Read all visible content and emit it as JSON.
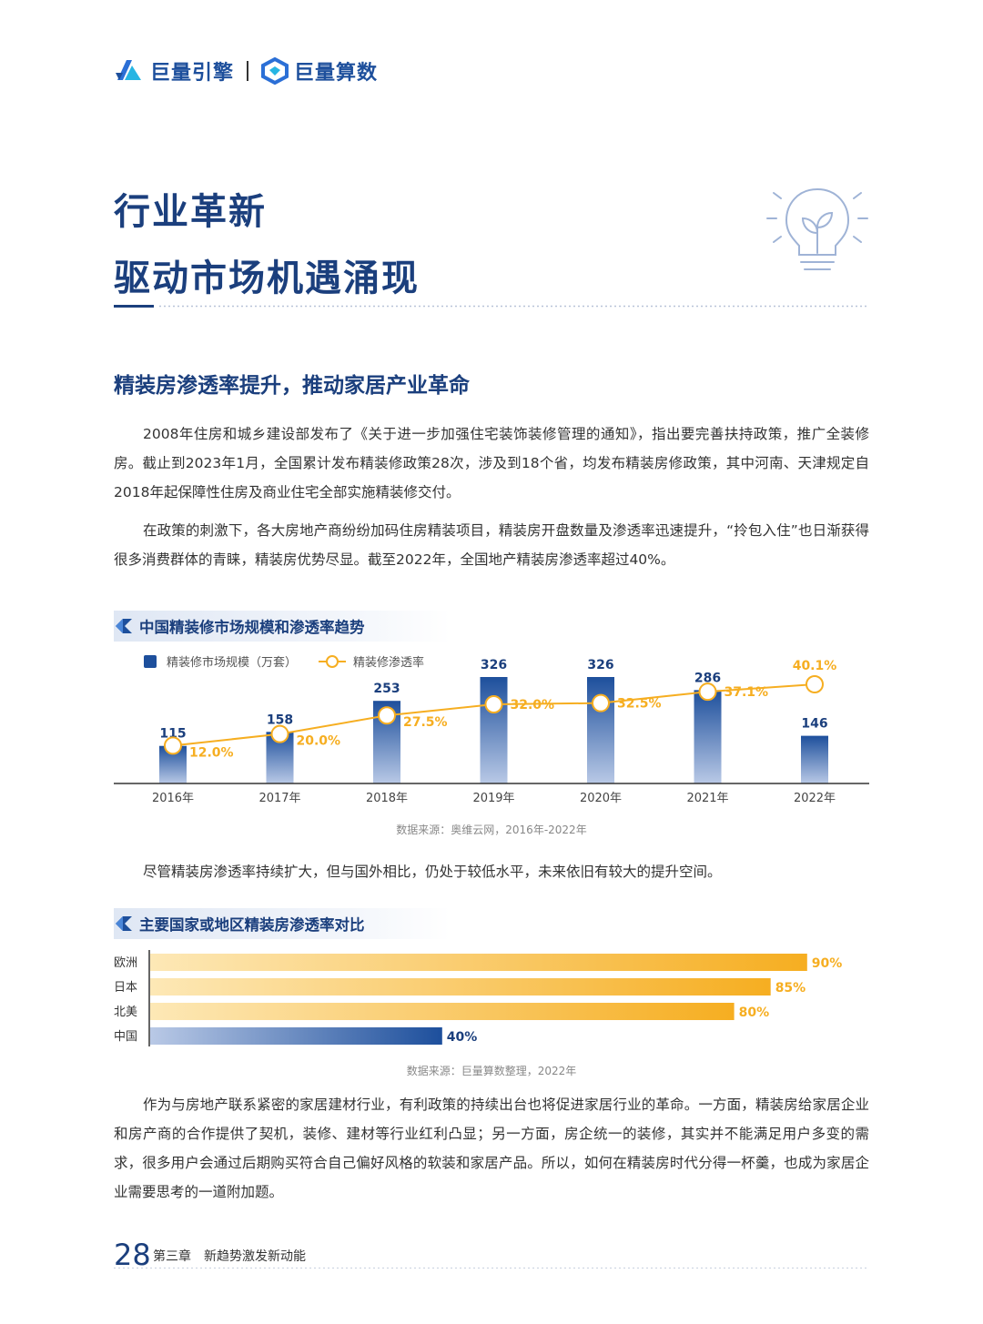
{
  "header": {
    "brand_left": "巨量引擎",
    "brand_right": "巨量算数"
  },
  "title": {
    "line1": "行业革新",
    "line2": "驱动市场机遇涌现"
  },
  "section_heading": "精装房渗透率提升，推动家居产业革命",
  "paragraphs": {
    "p1": "2008年住房和城乡建设部发布了《关于进一步加强住宅装饰装修管理的通知》，指出要完善扶持政策，推广全装修房。截止到2023年1月，全国累计发布精装修政策28次，涉及到18个省，均发布精装房修政策，其中河南、天津规定自2018年起保障性住房及商业住宅全部实施精装修交付。",
    "p2": "在政策的刺激下，各大房地产商纷纷加码住房精装项目，精装房开盘数量及渗透率迅速提升，“拎包入住”也日渐获得很多消费群体的青睐，精装房优势尽显。截至2022年，全国地产精装房渗透率超过40%。",
    "p3": "尽管精装房渗透率持续扩大，但与国外相比，仍处于较低水平，未来依旧有较大的提升空间。",
    "p4": "作为与房地产联系紧密的家居建材行业，有利政策的持续出台也将促进家居行业的革命。一方面，精装房给家居企业和房产商的合作提供了契机，装修、建材等行业红利凸显；另一方面，房企统一的装修，其实并不能满足用户多变的需求，很多用户会通过后期购买符合自己偏好风格的软装和家居产品。所以，如何在精装房时代分得一杯羹，也成为家居企业需要思考的一道附加题。"
  },
  "chart_data": [
    {
      "type": "bar",
      "title": "中国精装修市场规模和渗透率趋势",
      "categories": [
        "2016年",
        "2017年",
        "2018年",
        "2019年",
        "2020年",
        "2021年",
        "2022年"
      ],
      "series": [
        {
          "name": "精装修市场规模（万套）",
          "kind": "bar",
          "values": [
            115,
            158,
            253,
            326,
            326,
            286,
            146
          ],
          "labels": [
            "115",
            "158",
            "253",
            "326",
            "326",
            "286",
            "146"
          ]
        },
        {
          "name": "精装修渗透率",
          "kind": "line",
          "values": [
            12.0,
            20.0,
            27.5,
            32.0,
            32.5,
            37.1,
            40.1
          ],
          "labels": [
            "12.0%",
            "20.0%",
            "27.5%",
            "32.0%",
            "32.5%",
            "37.1%",
            "40.1%"
          ]
        }
      ],
      "ylim_bar": [
        0,
        400
      ],
      "ylim_line": [
        0,
        60
      ],
      "source": "数据来源：奥维云网，2016年-2022年",
      "colors": {
        "bar_top": "#1d4f9c",
        "bar_bottom": "#cfdaee",
        "line": "#f6ae21"
      }
    },
    {
      "type": "bar",
      "orientation": "horizontal",
      "title": "主要国家或地区精装房渗透率对比",
      "categories": [
        "欧洲",
        "日本",
        "北美",
        "中国"
      ],
      "values": [
        90,
        85,
        80,
        40
      ],
      "labels": [
        "90%",
        "85%",
        "80%",
        "40%"
      ],
      "xlim": [
        0,
        100
      ],
      "source": "数据来源：巨量算数整理，2022年",
      "colors": {
        "highlight": "#1d4f9c",
        "other": "#f6ae21"
      }
    }
  ],
  "footer": {
    "page_number": "28",
    "chapter": "第三章　新趋势激发新动能"
  }
}
